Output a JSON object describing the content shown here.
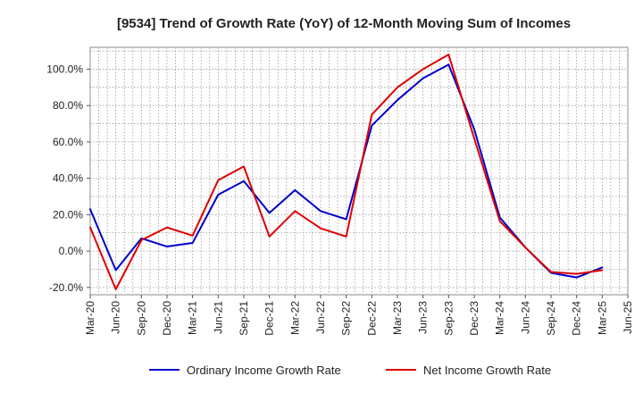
{
  "chart_data": {
    "type": "line",
    "title": "[9534]  Trend of Growth Rate (YoY) of 12-Month Moving Sum of Incomes",
    "xlabel": "",
    "ylabel": "",
    "ylim": [
      -24,
      112
    ],
    "yticks": [
      -20,
      0,
      20,
      40,
      60,
      80,
      100
    ],
    "ytick_labels": [
      "-20.0%",
      "0.0%",
      "20.0%",
      "40.0%",
      "60.0%",
      "80.0%",
      "100.0%"
    ],
    "x": [
      "Mar-20",
      "Apr-20",
      "May-20",
      "Jun-20",
      "Jul-20",
      "Aug-20",
      "Sep-20",
      "Oct-20",
      "Nov-20",
      "Dec-20",
      "Jan-21",
      "Feb-21",
      "Mar-21",
      "Apr-21",
      "May-21",
      "Jun-21",
      "Jul-21",
      "Aug-21",
      "Sep-21",
      "Oct-21",
      "Nov-21",
      "Dec-21",
      "Jan-22",
      "Feb-22",
      "Mar-22",
      "Apr-22",
      "May-22",
      "Jun-22",
      "Jul-22",
      "Aug-22",
      "Sep-22",
      "Oct-22",
      "Nov-22",
      "Dec-22",
      "Jan-23",
      "Feb-23",
      "Mar-23",
      "Apr-23",
      "May-23",
      "Jun-23",
      "Jul-23",
      "Aug-23",
      "Sep-23",
      "Oct-23",
      "Nov-23",
      "Dec-23",
      "Jan-24",
      "Feb-24",
      "Mar-24",
      "Apr-24",
      "May-24",
      "Jun-24",
      "Jul-24",
      "Aug-24",
      "Sep-24",
      "Oct-24",
      "Nov-24",
      "Dec-24",
      "Jan-25",
      "Feb-25",
      "Mar-25",
      "Apr-25",
      "May-25",
      "Jun-25"
    ],
    "xtick_labels": [
      "Mar-20",
      "Jun-20",
      "Sep-20",
      "Dec-20",
      "Mar-21",
      "Jun-21",
      "Sep-21",
      "Dec-21",
      "Mar-22",
      "Jun-22",
      "Sep-22",
      "Dec-22",
      "Mar-23",
      "Jun-23",
      "Sep-23",
      "Dec-23",
      "Mar-24",
      "Jun-24",
      "Sep-24",
      "Dec-24",
      "Mar-25",
      "Jun-25"
    ],
    "series": [
      {
        "name": "Ordinary Income Growth Rate",
        "color": "#0000cc",
        "x": [
          "Mar-20",
          "Jun-20",
          "Sep-20",
          "Dec-20",
          "Mar-21",
          "Jun-21",
          "Sep-21",
          "Dec-21",
          "Mar-22",
          "Jun-22",
          "Sep-22",
          "Dec-22",
          "Mar-23",
          "Jun-23",
          "Sep-23",
          "Dec-23",
          "Mar-24",
          "Jun-24",
          "Sep-24",
          "Dec-24",
          "Mar-25"
        ],
        "values": [
          23,
          -10.5,
          7,
          2.5,
          4.5,
          31,
          38.5,
          21,
          33.5,
          22,
          17.5,
          69,
          83,
          95,
          102.5,
          67,
          18.5,
          2,
          -12,
          -14.5,
          -9
        ]
      },
      {
        "name": "Net Income Growth Rate",
        "color": "#dd0000",
        "x": [
          "Mar-20",
          "Jun-20",
          "Sep-20",
          "Dec-20",
          "Mar-21",
          "Jun-21",
          "Sep-21",
          "Dec-21",
          "Mar-22",
          "Jun-22",
          "Sep-22",
          "Dec-22",
          "Mar-23",
          "Jun-23",
          "Sep-23",
          "Dec-23",
          "Mar-24",
          "Jun-24",
          "Sep-24",
          "Dec-24",
          "Mar-25"
        ],
        "values": [
          13,
          -21,
          6,
          13,
          8.5,
          39,
          46.5,
          8,
          22,
          12.5,
          8,
          75,
          90,
          100,
          108,
          62,
          16.5,
          2,
          -11.5,
          -12.5,
          -10.5
        ]
      }
    ],
    "grid": true,
    "legend": "bottom-center"
  }
}
